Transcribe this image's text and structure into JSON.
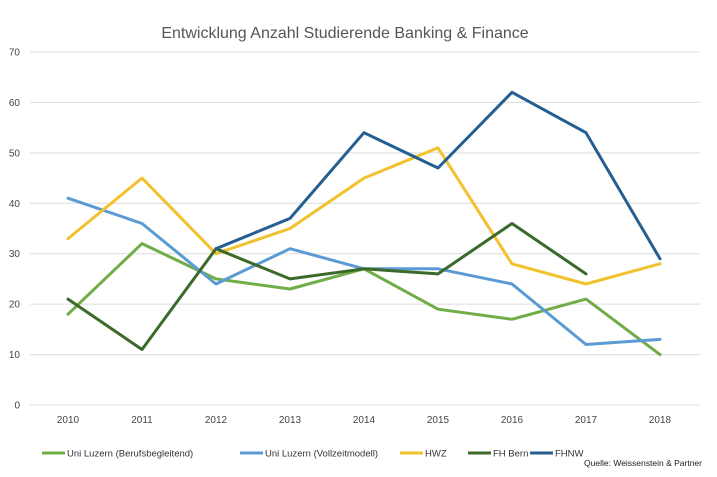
{
  "chart_data": {
    "type": "line",
    "title": "Entwicklung Anzahl Studierende Banking & Finance",
    "x": [
      "2010",
      "2011",
      "2012",
      "2013",
      "2014",
      "2015",
      "2016",
      "2017",
      "2018"
    ],
    "ylim": [
      0,
      70
    ],
    "yticks": [
      "0",
      "10",
      "20",
      "30",
      "40",
      "50",
      "60",
      "70"
    ],
    "grid": true,
    "legend_position": "bottom",
    "series": [
      {
        "name": "Uni Luzern (Berufsbegleitend)",
        "color": "#70AD47",
        "values": [
          18,
          32,
          25,
          23,
          27,
          19,
          17,
          21,
          10
        ]
      },
      {
        "name": "Uni Luzern (Vollzeitmodell)",
        "color": "#5B9BD5",
        "values": [
          41,
          36,
          24,
          31,
          27,
          27,
          24,
          12,
          13
        ]
      },
      {
        "name": "HWZ",
        "color": "#F2C12E",
        "values": [
          33,
          45,
          30,
          35,
          45,
          51,
          28,
          24,
          28
        ]
      },
      {
        "name": "FH Bern",
        "color": "#3B6A2A",
        "values": [
          21,
          11,
          31,
          25,
          27,
          26,
          36,
          26,
          null
        ]
      },
      {
        "name": "FHNW",
        "color": "#255E91",
        "values": [
          null,
          null,
          31,
          37,
          54,
          47,
          62,
          54,
          29
        ]
      }
    ],
    "source": "Quelle: Weissenstein & Partner"
  }
}
